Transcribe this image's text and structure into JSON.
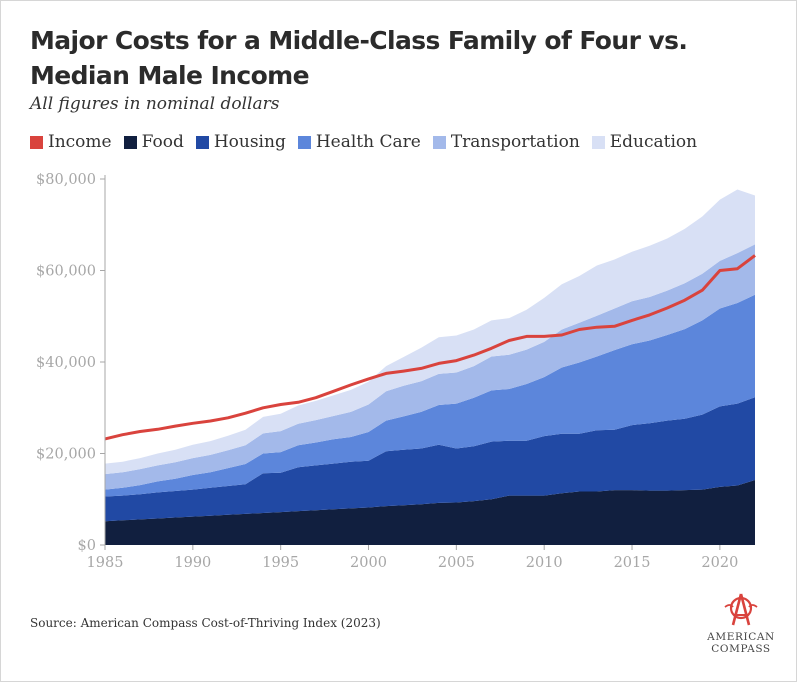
{
  "title": "Major Costs for a Middle-Class Family of Four vs. Median Male Income",
  "subtitle": "All figures in nominal dollars",
  "source": "Source: American Compass Cost-of-Thriving Index (2023)",
  "logo": {
    "line1": "AMERICAN",
    "line2": "COMPASS",
    "color": "#d9433d"
  },
  "colors": {
    "income": "#d9433d",
    "food": "#111f3f",
    "housing": "#2149a4",
    "health_care": "#5c86db",
    "transportation": "#a3b9ea",
    "education": "#d8e0f5",
    "tick": "#a7a7a7"
  },
  "legend": [
    {
      "label": "Income",
      "color": "#d9433d"
    },
    {
      "label": "Food",
      "color": "#111f3f"
    },
    {
      "label": "Housing",
      "color": "#2149a4"
    },
    {
      "label": "Health Care",
      "color": "#5c86db"
    },
    {
      "label": "Transportation",
      "color": "#a3b9ea"
    },
    {
      "label": "Education",
      "color": "#d8e0f5"
    }
  ],
  "chart_data": {
    "type": "area",
    "stacked": true,
    "x": [
      1985,
      1986,
      1987,
      1988,
      1989,
      1990,
      1991,
      1992,
      1993,
      1994,
      1995,
      1996,
      1997,
      1998,
      1999,
      2000,
      2001,
      2002,
      2003,
      2004,
      2005,
      2006,
      2007,
      2008,
      2009,
      2010,
      2011,
      2012,
      2013,
      2014,
      2015,
      2016,
      2017,
      2018,
      2019,
      2020,
      2021,
      2022
    ],
    "ylim": [
      0,
      80000
    ],
    "yticks": [
      0,
      20000,
      40000,
      60000,
      80000
    ],
    "ytick_labels": [
      "$0",
      "$20,000",
      "$40,000",
      "$60,000",
      "$80,000"
    ],
    "xticks": [
      1985,
      1990,
      1995,
      2000,
      2005,
      2010,
      2015,
      2020
    ],
    "xtick_labels": [
      "1985",
      "1990",
      "1995",
      "2000",
      "2005",
      "2010",
      "2015",
      "2020"
    ],
    "grid": false,
    "legend_position": "top",
    "series": [
      {
        "name": "Food",
        "color": "#111f3f",
        "values": [
          5200,
          5400,
          5600,
          5800,
          6000,
          6200,
          6400,
          6600,
          6800,
          7000,
          7200,
          7400,
          7600,
          7800,
          8000,
          8200,
          8500,
          8700,
          8900,
          9200,
          9300,
          9600,
          10000,
          10800,
          10800,
          10800,
          11300,
          11700,
          11700,
          12000,
          12000,
          11900,
          11900,
          12000,
          12100,
          12700,
          13000,
          14200
        ]
      },
      {
        "name": "Housing",
        "color": "#2149a4",
        "values": [
          5400,
          5400,
          5500,
          5700,
          5800,
          5900,
          6100,
          6300,
          6500,
          8700,
          8600,
          9600,
          9800,
          10000,
          10200,
          10200,
          12000,
          12100,
          12200,
          12700,
          11800,
          12000,
          12600,
          12000,
          12000,
          13000,
          13000,
          12600,
          13400,
          13200,
          14200,
          14700,
          15300,
          15600,
          16400,
          17600,
          17900,
          18100
        ]
      },
      {
        "name": "Health Care",
        "color": "#5c86db",
        "values": [
          1500,
          1700,
          2000,
          2400,
          2700,
          3200,
          3400,
          3900,
          4400,
          4300,
          4500,
          4800,
          5000,
          5300,
          5400,
          6300,
          6700,
          7300,
          8000,
          8700,
          9800,
          10600,
          11200,
          11300,
          12400,
          12900,
          14500,
          15600,
          16100,
          17400,
          17700,
          18100,
          18700,
          19600,
          20600,
          21400,
          22000,
          22400
        ]
      },
      {
        "name": "Transportation",
        "color": "#a3b9ea",
        "values": [
          3400,
          3400,
          3500,
          3500,
          3600,
          3700,
          3800,
          3900,
          4100,
          4400,
          4600,
          4700,
          4900,
          5100,
          5500,
          6000,
          6400,
          6700,
          6700,
          6800,
          6800,
          6900,
          7400,
          7500,
          7500,
          7700,
          8300,
          8700,
          8900,
          9100,
          9400,
          9500,
          9700,
          10000,
          10200,
          10400,
          10900,
          11000
        ]
      },
      {
        "name": "Education",
        "color": "#d8e0f5",
        "values": [
          2300,
          2300,
          2400,
          2600,
          2700,
          2900,
          3000,
          3200,
          3400,
          3600,
          3800,
          4000,
          4200,
          4500,
          4800,
          5000,
          5500,
          6300,
          7300,
          8000,
          8100,
          8000,
          7900,
          8000,
          8700,
          9600,
          9900,
          10200,
          11000,
          10700,
          10800,
          11200,
          11400,
          11900,
          12500,
          13400,
          13900,
          10700
        ]
      },
      {
        "name": "Income",
        "color": "#d9433d",
        "kind": "line",
        "values": [
          23200,
          24100,
          24800,
          25300,
          26000,
          26600,
          27100,
          27800,
          28800,
          30000,
          30700,
          31200,
          32200,
          33600,
          35000,
          36300,
          37500,
          38000,
          38600,
          39700,
          40300,
          41500,
          43000,
          44700,
          45600,
          45600,
          45900,
          47100,
          47600,
          47800,
          49100,
          50300,
          51800,
          53500,
          55700,
          60000,
          60400,
          63300
        ]
      }
    ]
  }
}
